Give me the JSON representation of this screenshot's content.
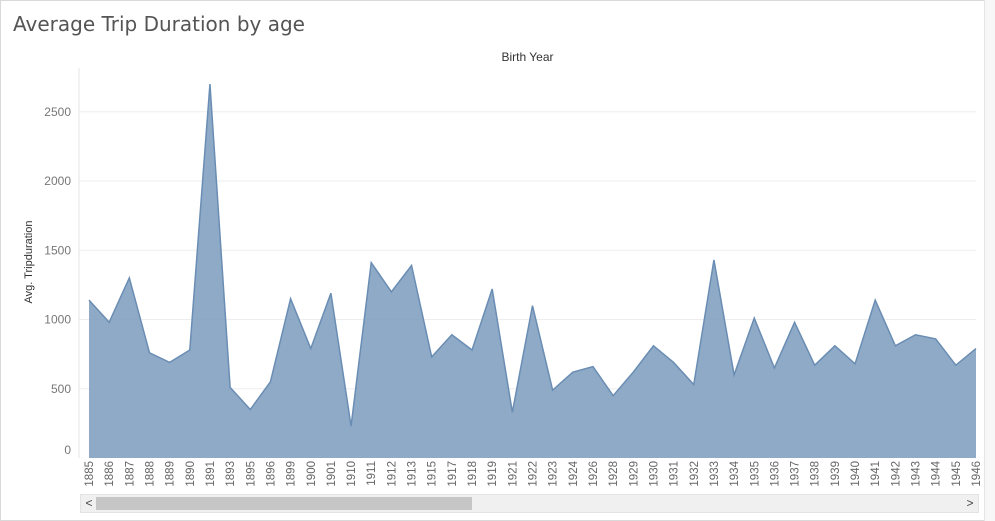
{
  "title": "Average Trip Duration by age",
  "chart_data": {
    "type": "area",
    "title": "Average Trip Duration by age",
    "column_header": "Birth Year",
    "ylabel": "Avg. Tripduration",
    "xlabel": "",
    "ylim": [
      0,
      2800
    ],
    "yticks": [
      0,
      500,
      1000,
      1500,
      2000,
      2500
    ],
    "grid": true,
    "color": "#7b9bbd",
    "categories": [
      "1885",
      "1886",
      "1887",
      "1888",
      "1889",
      "1890",
      "1891",
      "1893",
      "1895",
      "1896",
      "1899",
      "1900",
      "1901",
      "1910",
      "1911",
      "1912",
      "1913",
      "1915",
      "1917",
      "1918",
      "1919",
      "1921",
      "1922",
      "1923",
      "1924",
      "1926",
      "1928",
      "1929",
      "1930",
      "1931",
      "1932",
      "1933",
      "1934",
      "1935",
      "1936",
      "1937",
      "1938",
      "1939",
      "1940",
      "1941",
      "1942",
      "1943",
      "1944",
      "1945",
      "1946"
    ],
    "values": [
      1140,
      980,
      1300,
      760,
      690,
      780,
      2700,
      510,
      350,
      550,
      1150,
      790,
      1190,
      230,
      1410,
      1200,
      1390,
      730,
      890,
      780,
      1220,
      330,
      1100,
      490,
      620,
      660,
      450,
      620,
      810,
      690,
      530,
      1430,
      600,
      1010,
      650,
      980,
      670,
      810,
      680,
      1140,
      810,
      890,
      860,
      670,
      790
    ]
  },
  "scrollbar": {
    "left_arrow": "<",
    "right_arrow": ">",
    "thumb_fraction": 0.43
  }
}
